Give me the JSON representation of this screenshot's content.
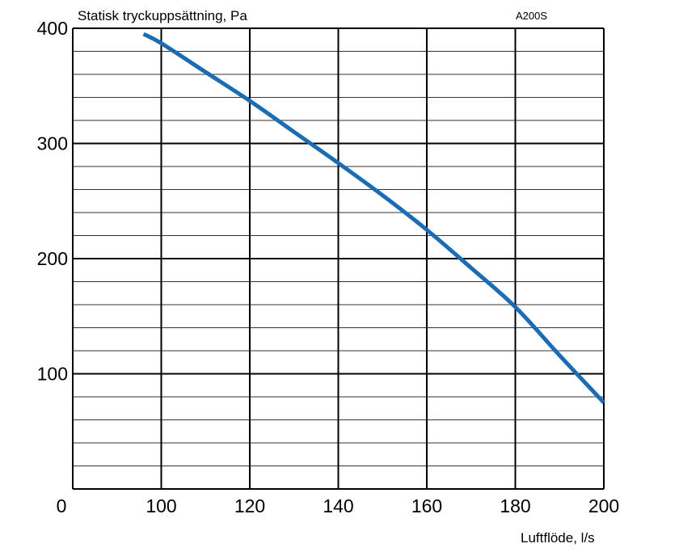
{
  "chart_data": {
    "type": "line",
    "title": "",
    "code": "A200S",
    "ylabel": "Statisk tryckuppsättning, Pa",
    "xlabel": "Luftflöde, l/s",
    "origin_label": "0",
    "xlim": [
      80,
      200
    ],
    "ylim": [
      0,
      400
    ],
    "x_ticks": [
      "100",
      "120",
      "140",
      "160",
      "180",
      "200"
    ],
    "y_ticks": [
      "100",
      "200",
      "300",
      "400"
    ],
    "grid": true,
    "y_minor_step": 20,
    "x_major_step": 20,
    "series": [
      {
        "color": "#1a6cb5",
        "x": [
          96,
          100,
          110,
          120,
          130,
          140,
          150,
          160,
          170,
          180,
          190,
          200
        ],
        "y": [
          395,
          387,
          362,
          337,
          310,
          283,
          255,
          225,
          192,
          158,
          116,
          75
        ]
      }
    ]
  }
}
